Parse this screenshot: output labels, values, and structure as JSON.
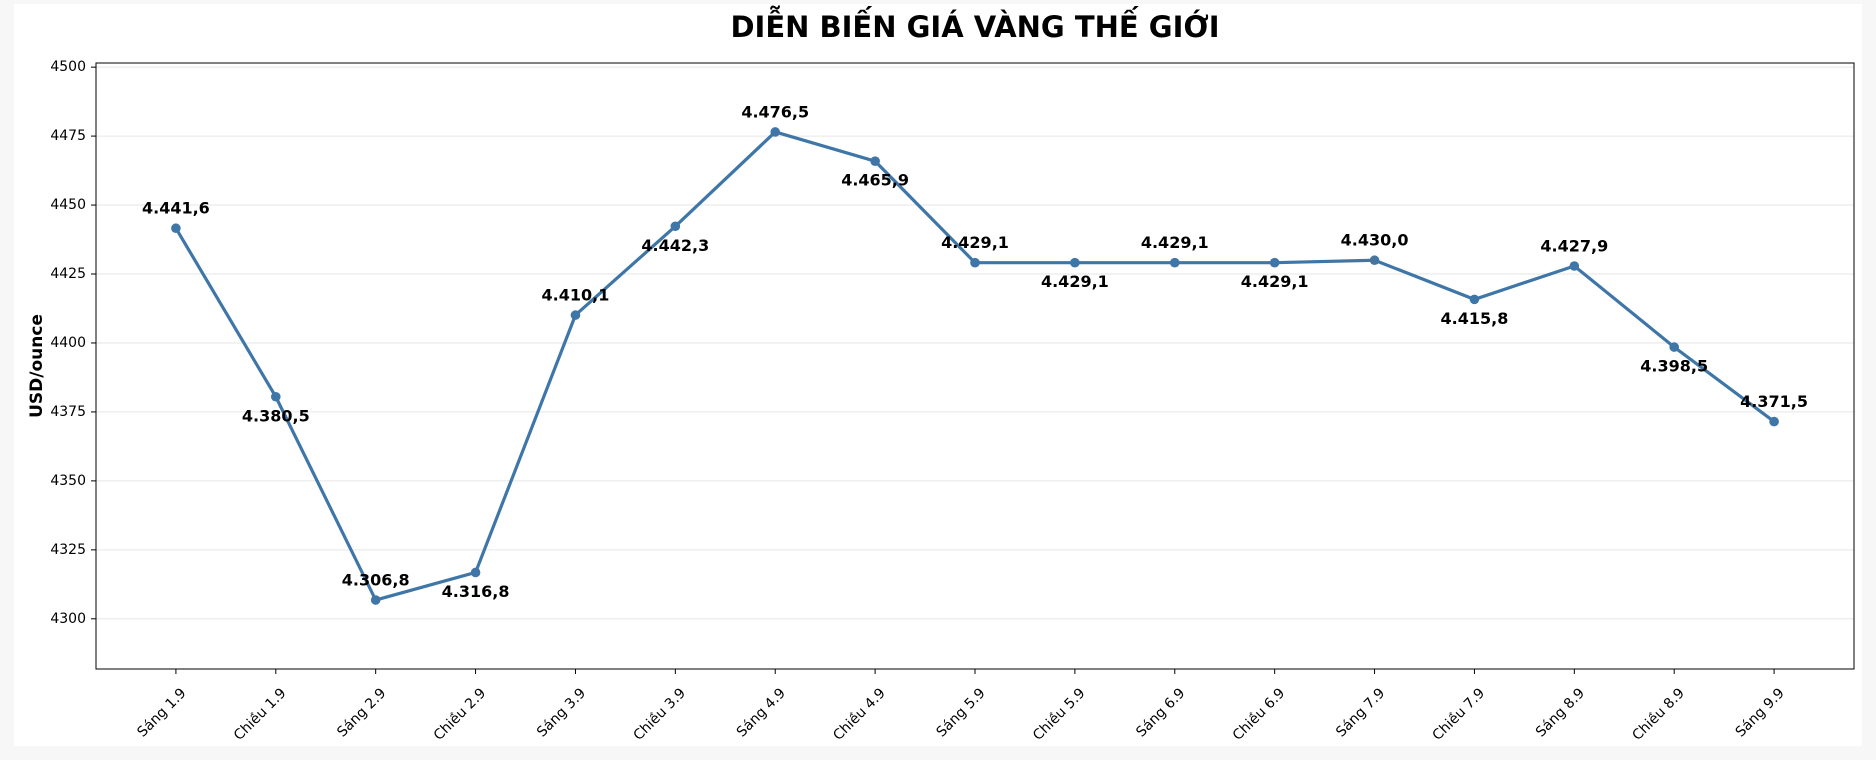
{
  "chart_data": {
    "type": "line",
    "title": "DIỄN BIẾN GIÁ VÀNG THẾ GIỚI",
    "y_label": "USD/ounce",
    "categories": [
      "Sáng 1.9",
      "Chiều 1.9",
      "Sáng 2.9",
      "Chiều 2.9",
      "Sáng 3.9",
      "Chiều 3.9",
      "Sáng 4.9",
      "Chiều 4.9",
      "Sáng 5.9",
      "Chiều 5.9",
      "Sáng 6.9",
      "Chiều 6.9",
      "Sáng 7.9",
      "Chiều 7.9",
      "Sáng 8.9",
      "Chiều 8.9",
      "Sáng 9.9"
    ],
    "values": [
      4441.6,
      4380.5,
      4306.8,
      4316.8,
      4410.1,
      4442.3,
      4476.5,
      4465.9,
      4429.1,
      4429.1,
      4429.1,
      4429.1,
      4430.0,
      4415.8,
      4427.9,
      4398.5,
      4371.5
    ],
    "value_labels": [
      "4.441,6",
      "4.380,5",
      "4.306,8",
      "4.316,8",
      "4.410,1",
      "4.442,3",
      "4.476,5",
      "4.465,9",
      "4.429,1",
      "4.429,1",
      "4.429,1",
      "4.429,1",
      "4.430,0",
      "4.415,8",
      "4.427,9",
      "4.398,5",
      "4.371,5"
    ],
    "color": "#3f76a8",
    "ylim": [
      4281.8,
      4501.5
    ],
    "yticks": [
      4300,
      4325,
      4350,
      4375,
      4400,
      4425,
      4450,
      4475,
      4500
    ],
    "grid": true
  }
}
